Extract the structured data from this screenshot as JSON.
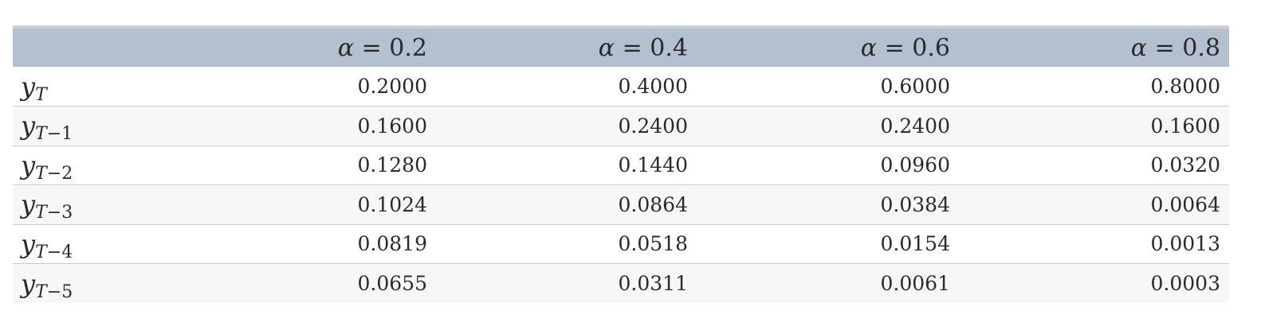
{
  "table": {
    "alpha_symbol": "α",
    "equals": "=",
    "columns": [
      {
        "alpha": "0.2"
      },
      {
        "alpha": "0.4"
      },
      {
        "alpha": "0.6"
      },
      {
        "alpha": "0.8"
      }
    ],
    "var_letter": "y",
    "rows": [
      {
        "subscript_var": "T",
        "subscript_offset": "",
        "values": [
          "0.2000",
          "0.4000",
          "0.6000",
          "0.8000"
        ]
      },
      {
        "subscript_var": "T",
        "subscript_offset": "−1",
        "values": [
          "0.1600",
          "0.2400",
          "0.2400",
          "0.1600"
        ]
      },
      {
        "subscript_var": "T",
        "subscript_offset": "−2",
        "values": [
          "0.1280",
          "0.1440",
          "0.0960",
          "0.0320"
        ]
      },
      {
        "subscript_var": "T",
        "subscript_offset": "−3",
        "values": [
          "0.1024",
          "0.0864",
          "0.0384",
          "0.0064"
        ]
      },
      {
        "subscript_var": "T",
        "subscript_offset": "−4",
        "values": [
          "0.0819",
          "0.0518",
          "0.0154",
          "0.0013"
        ]
      },
      {
        "subscript_var": "T",
        "subscript_offset": "−5",
        "values": [
          "0.0655",
          "0.0311",
          "0.0061",
          "0.0003"
        ]
      }
    ]
  }
}
